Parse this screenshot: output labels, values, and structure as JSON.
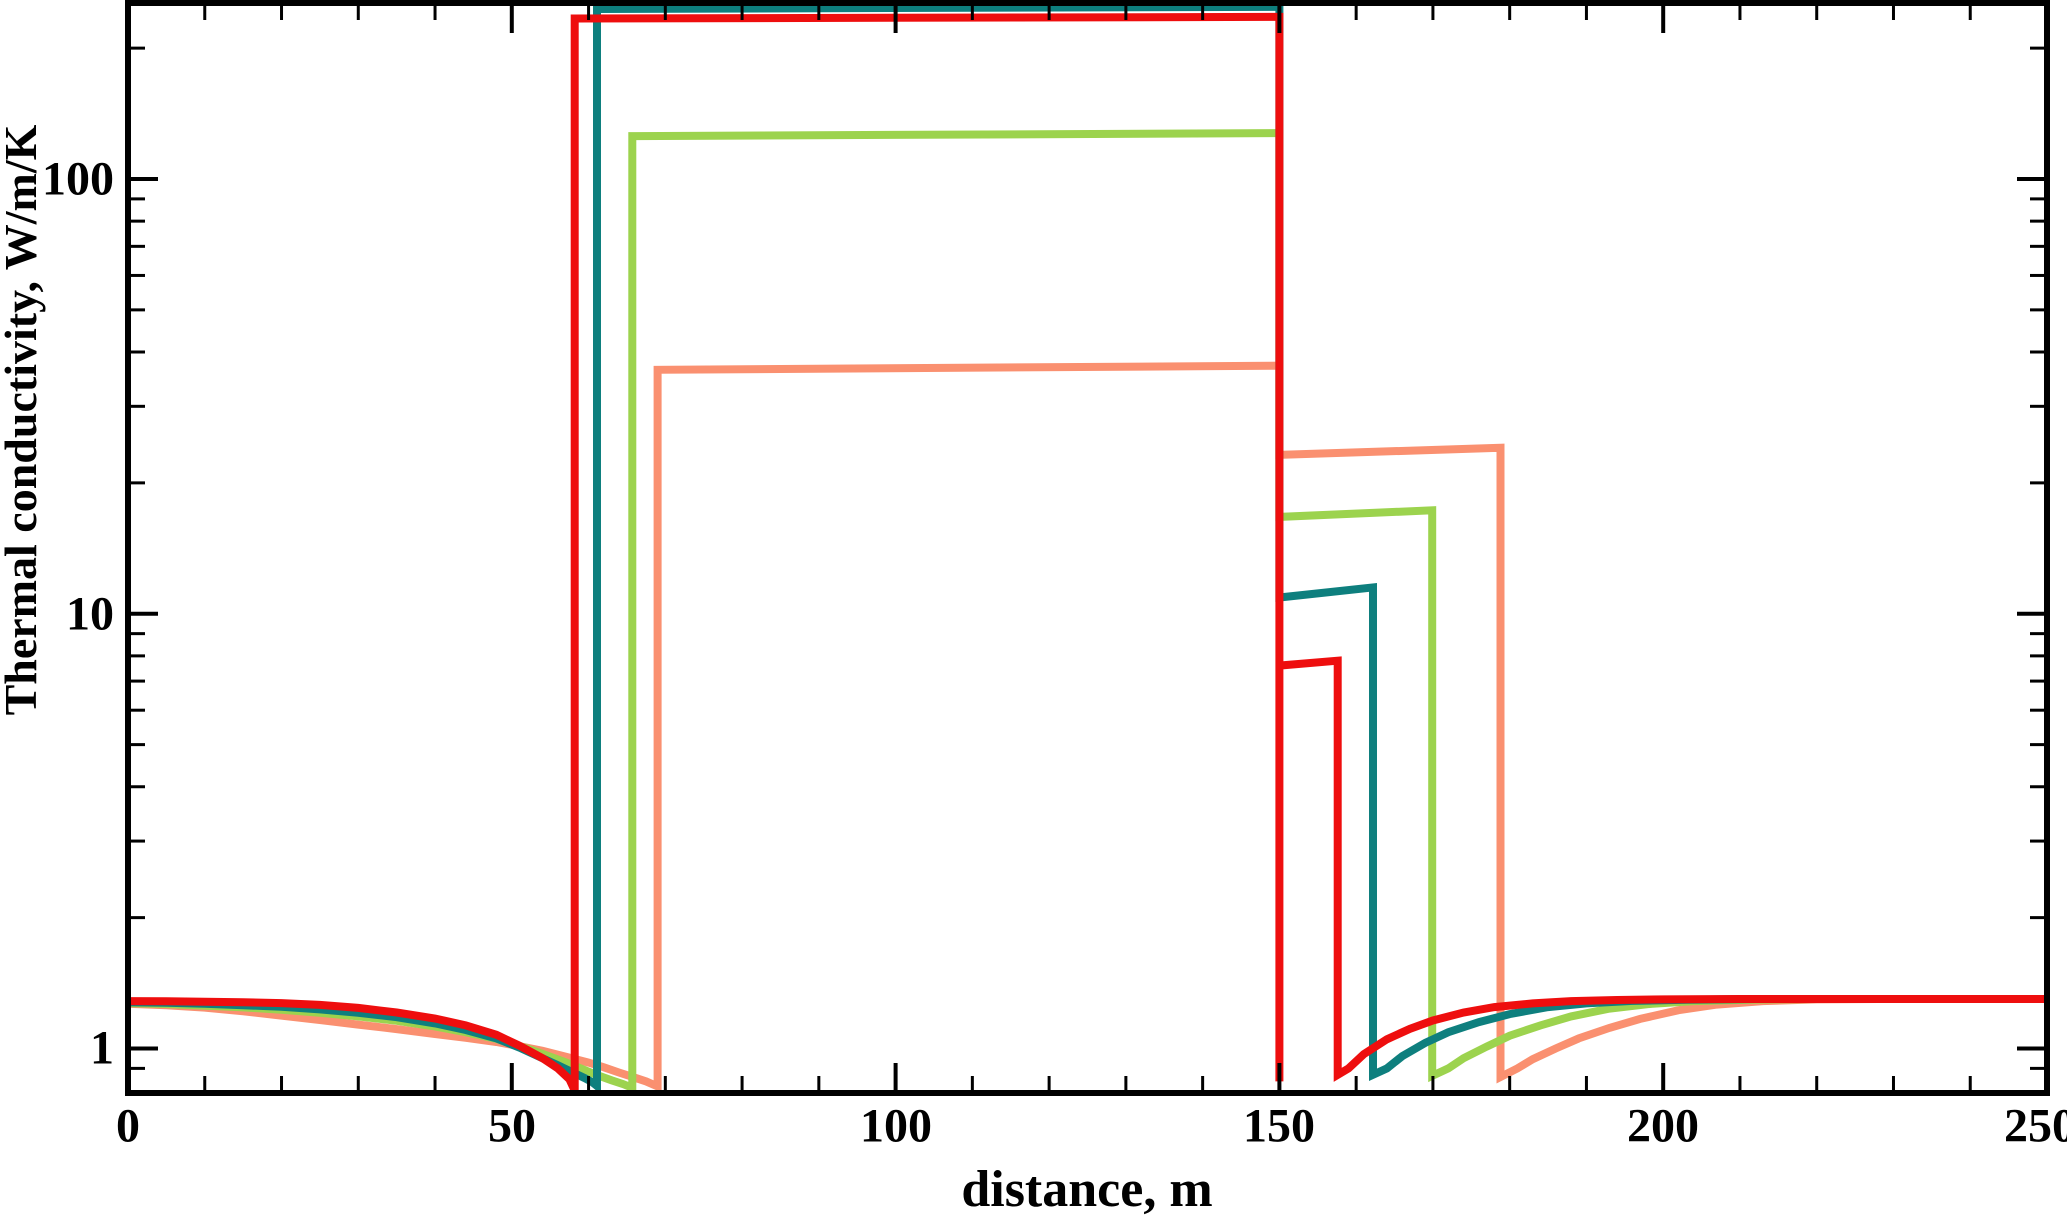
{
  "chart_data": {
    "type": "line",
    "title": "",
    "xlabel": "distance, m",
    "ylabel": "Thermal conductivity, W/m/K",
    "grid": false,
    "legend": false,
    "background_color": "#ffffff",
    "axis_color": "#000000",
    "x_axis": {
      "min": 0,
      "max": 250,
      "scale": "linear",
      "major_ticks": [
        0,
        50,
        100,
        150,
        200,
        250
      ],
      "major_tick_labels": [
        "0",
        "50",
        "100",
        "150",
        "200",
        "250"
      ],
      "minor_ticks": [
        10,
        20,
        30,
        40,
        60,
        70,
        80,
        90,
        110,
        120,
        130,
        140,
        160,
        170,
        180,
        190,
        210,
        220,
        230,
        240
      ]
    },
    "y_axis": {
      "min": 0.79,
      "max": 254,
      "scale": "log",
      "major_ticks": [
        1,
        10,
        100
      ],
      "major_tick_labels": [
        "1",
        "10",
        "100"
      ],
      "minor_ticks": [
        0.9,
        2,
        3,
        4,
        5,
        6,
        7,
        8,
        9,
        20,
        30,
        40,
        50,
        60,
        70,
        80,
        90,
        200
      ]
    },
    "series": [
      {
        "name": "salmon",
        "color": "#fa9070",
        "left_front_x": 69.0,
        "drop_x": 150,
        "right_front_x": 178.8,
        "high_plateau": 37,
        "mid_plateau": 23.6,
        "background_level": 1.3,
        "points": [
          [
            0,
            1.268
          ],
          [
            5,
            1.258
          ],
          [
            10,
            1.242
          ],
          [
            15,
            1.218
          ],
          [
            20,
            1.19
          ],
          [
            25,
            1.163
          ],
          [
            30,
            1.135
          ],
          [
            35,
            1.108
          ],
          [
            40,
            1.08
          ],
          [
            44,
            1.058
          ],
          [
            48,
            1.035
          ],
          [
            51,
            1.012
          ],
          [
            54,
            0.988
          ],
          [
            57,
            0.958
          ],
          [
            60,
            0.928
          ],
          [
            62,
            0.905
          ],
          [
            64,
            0.88
          ],
          [
            66,
            0.857
          ],
          [
            67.5,
            0.84
          ],
          [
            69,
            0.818
          ],
          [
            69,
            36.4
          ],
          [
            150,
            37.2
          ],
          [
            150,
            23.2
          ],
          [
            178.8,
            24.1
          ],
          [
            178.8,
            0.86
          ],
          [
            181,
            0.9
          ],
          [
            183,
            0.945
          ],
          [
            186,
            1.0
          ],
          [
            189,
            1.055
          ],
          [
            193,
            1.115
          ],
          [
            197,
            1.17
          ],
          [
            202,
            1.225
          ],
          [
            207,
            1.262
          ],
          [
            213,
            1.285
          ],
          [
            220,
            1.297
          ],
          [
            228,
            1.3
          ],
          [
            250,
            1.3
          ]
        ]
      },
      {
        "name": "green",
        "color": "#9cd34e",
        "left_front_x": 65.7,
        "drop_x": 150,
        "right_front_x": 169.9,
        "high_plateau": 127,
        "mid_plateau": 17,
        "background_level": 1.3,
        "points": [
          [
            0,
            1.272
          ],
          [
            5,
            1.266
          ],
          [
            10,
            1.255
          ],
          [
            15,
            1.243
          ],
          [
            20,
            1.228
          ],
          [
            25,
            1.208
          ],
          [
            30,
            1.185
          ],
          [
            35,
            1.158
          ],
          [
            40,
            1.124
          ],
          [
            44,
            1.09
          ],
          [
            48,
            1.052
          ],
          [
            51,
            1.014
          ],
          [
            54,
            0.972
          ],
          [
            57,
            0.93
          ],
          [
            59,
            0.9
          ],
          [
            61,
            0.87
          ],
          [
            63,
            0.845
          ],
          [
            64.5,
            0.828
          ],
          [
            65.7,
            0.812
          ],
          [
            65.7,
            125.5
          ],
          [
            150,
            127.5
          ],
          [
            150,
            16.7
          ],
          [
            169.9,
            17.3
          ],
          [
            169.9,
            0.865
          ],
          [
            172,
            0.9
          ],
          [
            174,
            0.95
          ],
          [
            177,
            1.01
          ],
          [
            180,
            1.07
          ],
          [
            184,
            1.13
          ],
          [
            188,
            1.185
          ],
          [
            193,
            1.235
          ],
          [
            198,
            1.265
          ],
          [
            204,
            1.285
          ],
          [
            211,
            1.295
          ],
          [
            220,
            1.3
          ],
          [
            250,
            1.3
          ]
        ]
      },
      {
        "name": "teal",
        "color": "#0e7f7e",
        "left_front_x": 61.1,
        "drop_x": 150,
        "right_front_x": 162.2,
        "high_plateau": 248,
        "mid_plateau": 11.2,
        "background_level": 1.3,
        "points": [
          [
            0,
            1.278
          ],
          [
            5,
            1.274
          ],
          [
            10,
            1.268
          ],
          [
            15,
            1.258
          ],
          [
            20,
            1.247
          ],
          [
            25,
            1.23
          ],
          [
            30,
            1.208
          ],
          [
            35,
            1.18
          ],
          [
            40,
            1.142
          ],
          [
            44,
            1.103
          ],
          [
            48,
            1.055
          ],
          [
            51,
            1.005
          ],
          [
            54,
            0.95
          ],
          [
            56,
            0.915
          ],
          [
            58,
            0.88
          ],
          [
            59.5,
            0.855
          ],
          [
            60.5,
            0.836
          ],
          [
            61.1,
            0.82
          ],
          [
            61.1,
            246
          ],
          [
            150,
            249
          ],
          [
            150,
            10.9
          ],
          [
            162.2,
            11.5
          ],
          [
            162.2,
            0.87
          ],
          [
            164,
            0.9
          ],
          [
            166,
            0.96
          ],
          [
            169,
            1.03
          ],
          [
            172,
            1.09
          ],
          [
            176,
            1.15
          ],
          [
            180,
            1.2
          ],
          [
            185,
            1.245
          ],
          [
            190,
            1.27
          ],
          [
            196,
            1.287
          ],
          [
            203,
            1.295
          ],
          [
            212,
            1.3
          ],
          [
            250,
            1.3
          ]
        ]
      },
      {
        "name": "red",
        "color": "#ee0e0e",
        "left_front_x": 58.2,
        "drop_x": 150,
        "right_front_x": 157.6,
        "high_plateau": 235,
        "mid_plateau": 7.7,
        "background_level": 1.3,
        "points": [
          [
            0,
            1.285
          ],
          [
            5,
            1.284
          ],
          [
            10,
            1.281
          ],
          [
            15,
            1.278
          ],
          [
            20,
            1.272
          ],
          [
            25,
            1.26
          ],
          [
            30,
            1.24
          ],
          [
            35,
            1.21
          ],
          [
            40,
            1.172
          ],
          [
            44,
            1.13
          ],
          [
            48,
            1.075
          ],
          [
            51,
            1.015
          ],
          [
            54,
            0.95
          ],
          [
            56,
            0.9
          ],
          [
            57.5,
            0.85
          ],
          [
            58.2,
            0.8
          ],
          [
            58.2,
            234
          ],
          [
            150,
            236
          ],
          [
            150,
            0.84
          ],
          [
            150,
            7.6
          ],
          [
            157.6,
            7.8
          ],
          [
            157.6,
            0.87
          ],
          [
            159,
            0.9
          ],
          [
            161,
            0.97
          ],
          [
            164,
            1.05
          ],
          [
            167,
            1.11
          ],
          [
            170,
            1.16
          ],
          [
            174,
            1.21
          ],
          [
            178,
            1.245
          ],
          [
            183,
            1.27
          ],
          [
            188,
            1.285
          ],
          [
            194,
            1.293
          ],
          [
            200,
            1.297
          ],
          [
            210,
            1.3
          ],
          [
            250,
            1.3
          ]
        ]
      }
    ]
  }
}
